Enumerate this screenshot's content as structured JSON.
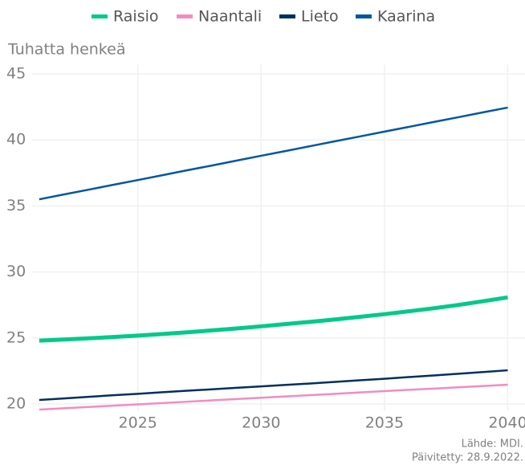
{
  "chart_data": {
    "type": "line",
    "y_label": "Tuhatta henkeä",
    "x": [
      2021,
      2022,
      2023,
      2024,
      2025,
      2026,
      2027,
      2028,
      2029,
      2030,
      2031,
      2032,
      2033,
      2034,
      2035,
      2036,
      2037,
      2038,
      2039,
      2040
    ],
    "series": [
      {
        "name": "Raisio",
        "color": "#00c98a",
        "width": 5,
        "values": [
          24.8,
          24.88,
          24.97,
          25.07,
          25.18,
          25.3,
          25.43,
          25.57,
          25.72,
          25.88,
          26.05,
          26.22,
          26.4,
          26.6,
          26.8,
          27.02,
          27.25,
          27.5,
          27.78,
          28.07
        ]
      },
      {
        "name": "Naantali",
        "color": "#f28cc0",
        "width": 2.5,
        "values": [
          19.57,
          19.67,
          19.77,
          19.87,
          19.97,
          20.07,
          20.17,
          20.27,
          20.37,
          20.47,
          20.57,
          20.67,
          20.77,
          20.87,
          20.97,
          21.07,
          21.16,
          21.26,
          21.36,
          21.46
        ]
      },
      {
        "name": "Lieto",
        "color": "#002f5f",
        "width": 2.5,
        "values": [
          20.3,
          20.42,
          20.54,
          20.66,
          20.77,
          20.89,
          21.0,
          21.11,
          21.22,
          21.33,
          21.44,
          21.55,
          21.67,
          21.79,
          21.91,
          22.04,
          22.16,
          22.29,
          22.42,
          22.55
        ]
      },
      {
        "name": "Kaarina",
        "color": "#0057a0",
        "width": 2.5,
        "values": [
          35.5,
          35.87,
          36.23,
          36.6,
          36.96,
          37.33,
          37.7,
          38.06,
          38.43,
          38.8,
          39.16,
          39.53,
          39.9,
          40.26,
          40.63,
          40.99,
          41.36,
          41.72,
          42.09,
          42.45
        ]
      }
    ],
    "xlim": [
      2019.8,
      2040.7
    ],
    "xticks": [
      2025,
      2030,
      2035,
      2040
    ],
    "ylim": [
      19.5,
      45.7
    ],
    "yticks": [
      20,
      25,
      30,
      35,
      40,
      45
    ],
    "grid": true,
    "legend": "top",
    "source": [
      "Lähde: MDI.",
      "Päivitetty: 28.9.2022."
    ]
  }
}
